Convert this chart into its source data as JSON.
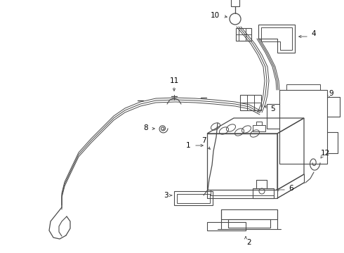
{
  "bg_color": "#ffffff",
  "line_color": "#4a4a4a",
  "lw": 0.9,
  "fs": 7.5
}
